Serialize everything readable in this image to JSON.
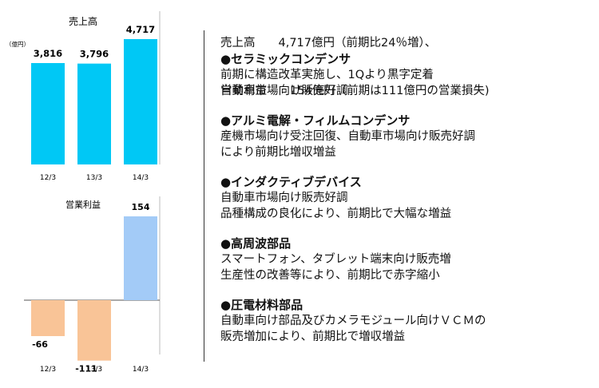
{
  "summary": {
    "line1": "売上高　　4,717億円（前期比24％増）、",
    "line2": "営業利益　　154億円（前期は111億円の営業損失)"
  },
  "sections": [
    {
      "title": "●セラミックコンデンサ",
      "lines": [
        "前期に構造改革実施し、1Qより黒字定着",
        "自動車市場向け販売好調"
      ]
    },
    {
      "title": "●アルミ電解・フィルムコンデンサ",
      "lines": [
        "産機市場向け受注回復、自動車市場向け販売好調",
        "により前期比増収増益"
      ]
    },
    {
      "title": "●インダクティブデバイス",
      "lines": [
        "自動車市場向け販売好調",
        "品種構成の良化により、前期比で大幅な増益"
      ]
    },
    {
      "title": "●高周波部品",
      "lines": [
        "スマートフォン、タブレット端末向け販売増",
        "生産性の改善等により、前期比で赤字縮小"
      ]
    },
    {
      "title": "●圧電材料部品",
      "lines": [
        "自動車向け部品及びカメラモジュール向けＶＣＭの",
        "販売増加により、前期比で増収増益"
      ]
    }
  ],
  "chart_data": [
    {
      "type": "bar",
      "title": "売上高",
      "unit_label": "（億円）",
      "categories": [
        "12/3",
        "13/3",
        "14/3"
      ],
      "values": [
        3816,
        3796,
        4717
      ],
      "value_labels": [
        "3,816",
        "3,796",
        "4,717"
      ],
      "colors": [
        "#00c8f5",
        "#00c8f5",
        "#00c8f5"
      ]
    },
    {
      "type": "bar",
      "title": "営業利益",
      "categories": [
        "12/3",
        "13/3",
        "14/3"
      ],
      "values": [
        -66,
        -111,
        154
      ],
      "value_labels": [
        "-66",
        "-111",
        "154"
      ],
      "colors": [
        "#f9c497",
        "#f9c497",
        "#a3cbf7"
      ]
    }
  ]
}
